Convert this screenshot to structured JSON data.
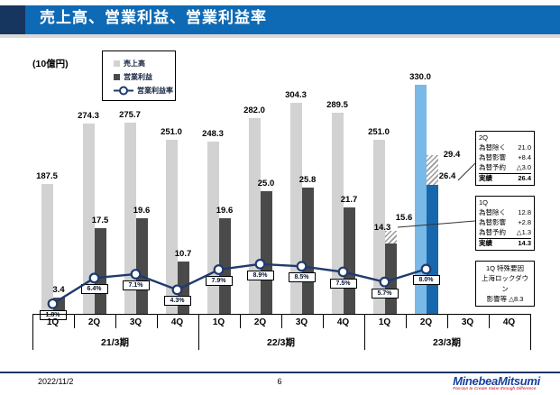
{
  "header": {
    "title": "売上高、営業利益、営業利益率"
  },
  "unit_label": "(10億円)",
  "legend": {
    "items": [
      {
        "label": "売上高",
        "swatch": "light-gray-square"
      },
      {
        "label": "営業利益",
        "swatch": "dark-gray-square"
      },
      {
        "label": "営業利益率",
        "swatch": "navy-line-circle-marker"
      }
    ]
  },
  "colors": {
    "header_bar": "#0e6ab4",
    "header_corner": "#16355f",
    "revenue_bar": "#d2d2d2",
    "op_income_bar": "#4a4a4a",
    "revenue_highlight": "#79b9e8",
    "op_income_highlight": "#1767ad",
    "margin_line": "#1f3a6e"
  },
  "chart_data": {
    "type": "bar+line",
    "unit": "10億円",
    "categories": [
      "1Q",
      "2Q",
      "3Q",
      "4Q",
      "1Q",
      "2Q",
      "3Q",
      "4Q",
      "1Q",
      "2Q",
      "3Q",
      "4Q"
    ],
    "year_groups": [
      {
        "label": "21/3期",
        "from": 0,
        "to": 3
      },
      {
        "label": "22/3期",
        "from": 4,
        "to": 7
      },
      {
        "label": "23/3期",
        "from": 8,
        "to": 11
      }
    ],
    "series": [
      {
        "name": "売上高",
        "type": "bar",
        "color": "#d2d2d2",
        "highlight": {
          "index": 9,
          "color": "#79b9e8"
        },
        "values": [
          187.5,
          274.3,
          275.7,
          251.0,
          248.3,
          282.0,
          304.3,
          289.5,
          251.0,
          330.0,
          null,
          null
        ]
      },
      {
        "name": "営業利益",
        "type": "bar",
        "color": "#4a4a4a",
        "highlight": {
          "index": 9,
          "color": "#1767ad"
        },
        "values": [
          3.4,
          17.5,
          19.6,
          10.7,
          19.6,
          25.0,
          25.8,
          21.7,
          14.3,
          26.4,
          null,
          null
        ]
      },
      {
        "name": "営業利益率",
        "type": "line",
        "unit": "%",
        "color": "#1f3a6e",
        "values": [
          1.8,
          6.4,
          7.1,
          4.3,
          7.9,
          8.9,
          8.5,
          7.5,
          5.7,
          8.0,
          null,
          null
        ]
      }
    ],
    "hatch_extensions": [
      {
        "index": 8,
        "top_value": 15.6
      },
      {
        "index": 9,
        "top_value": 29.4
      }
    ],
    "legend_position": "top-left",
    "grid": false
  },
  "annotations": {
    "fx_box_2q": {
      "title": "2Q",
      "rows": [
        {
          "label": "為替除く",
          "value": "21.0"
        },
        {
          "label": "為替影響",
          "value": "+8.4"
        },
        {
          "label": "為替予約",
          "value": "△3.0"
        },
        {
          "label": "実績",
          "value": "26.4",
          "emphasis": true
        }
      ]
    },
    "fx_box_1q": {
      "title": "1Q",
      "rows": [
        {
          "label": "為替除く",
          "value": "12.8"
        },
        {
          "label": "為替影響",
          "value": "+2.8"
        },
        {
          "label": "為替予約",
          "value": "△1.3"
        },
        {
          "label": "実績",
          "value": "14.3",
          "emphasis": true
        }
      ]
    },
    "special_box": {
      "lines": [
        "1Q 特殊要因",
        "上海ロックダウン",
        "影響等 △8.3"
      ]
    }
  },
  "footer": {
    "date": "2022/11/2",
    "page_number": "6",
    "logo_text": "MinebeaMitsumi",
    "logo_tagline": "Passion to Create Value through Difference"
  }
}
